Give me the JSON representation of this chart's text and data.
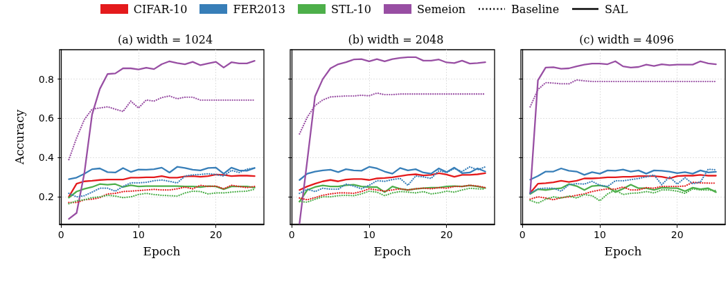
{
  "chart_data": [
    {
      "type": "line",
      "title": "(a) width = 1024",
      "xlabel": "Epoch",
      "ylabel": "Accuracy",
      "x": [
        1,
        2,
        3,
        4,
        5,
        6,
        7,
        8,
        9,
        10,
        11,
        12,
        13,
        14,
        15,
        16,
        17,
        18,
        19,
        20,
        21,
        22,
        23,
        24,
        25
      ],
      "xlim": [
        -0.2,
        26.2
      ],
      "xticks": [
        0,
        10,
        20
      ],
      "ylim": [
        0.06,
        0.95
      ],
      "yticks": [
        0.2,
        0.4,
        0.6,
        0.8
      ],
      "grid": true,
      "legend": "top",
      "annotations": [
        "Baseline",
        "SAL"
      ],
      "series": [
        {
          "name": "CIFAR-10",
          "color": "#e41a1c",
          "line_style": "dotted",
          "values": [
            0.171,
            0.171,
            0.185,
            0.188,
            0.196,
            0.215,
            0.218,
            0.227,
            0.229,
            0.232,
            0.235,
            0.238,
            0.235,
            0.235,
            0.241,
            0.25,
            0.241,
            0.259,
            0.253,
            0.255,
            0.241,
            0.259,
            0.253,
            0.247,
            0.253
          ]
        },
        {
          "color": "#e41a1c",
          "line_style": "solid",
          "values": [
            0.2,
            0.267,
            0.279,
            0.282,
            0.286,
            0.288,
            0.288,
            0.288,
            0.298,
            0.298,
            0.3,
            0.3,
            0.306,
            0.298,
            0.298,
            0.304,
            0.306,
            0.302,
            0.306,
            0.314,
            0.312,
            0.306,
            0.308,
            0.308,
            0.306
          ]
        },
        {
          "name": "FER2013",
          "color": "#377eb8",
          "line_style": "dotted",
          "values": [
            0.218,
            0.2,
            0.206,
            0.224,
            0.244,
            0.244,
            0.229,
            0.253,
            0.271,
            0.271,
            0.274,
            0.282,
            0.286,
            0.279,
            0.271,
            0.306,
            0.312,
            0.314,
            0.318,
            0.314,
            0.306,
            0.335,
            0.324,
            0.341,
            0.347
          ]
        },
        {
          "color": "#377eb8",
          "line_style": "solid",
          "values": [
            0.29,
            0.298,
            0.318,
            0.341,
            0.345,
            0.326,
            0.324,
            0.347,
            0.327,
            0.339,
            0.338,
            0.341,
            0.349,
            0.324,
            0.353,
            0.347,
            0.338,
            0.335,
            0.347,
            0.349,
            0.318,
            0.349,
            0.335,
            0.333,
            0.347
          ]
        },
        {
          "name": "STL-10",
          "color": "#4daf4a",
          "line_style": "dotted",
          "values": [
            0.165,
            0.18,
            0.185,
            0.196,
            0.2,
            0.208,
            0.204,
            0.196,
            0.2,
            0.212,
            0.218,
            0.212,
            0.208,
            0.206,
            0.204,
            0.22,
            0.229,
            0.227,
            0.215,
            0.22,
            0.22,
            0.224,
            0.227,
            0.229,
            0.239
          ]
        },
        {
          "color": "#4daf4a",
          "line_style": "solid",
          "values": [
            0.196,
            0.227,
            0.241,
            0.25,
            0.265,
            0.262,
            0.265,
            0.25,
            0.259,
            0.253,
            0.255,
            0.255,
            0.255,
            0.255,
            0.255,
            0.253,
            0.253,
            0.25,
            0.255,
            0.253,
            0.239,
            0.253,
            0.253,
            0.253,
            0.247
          ]
        },
        {
          "name": "Semeion",
          "color": "#984ea3",
          "line_style": "dotted",
          "values": [
            0.39,
            0.5,
            0.594,
            0.647,
            0.653,
            0.659,
            0.647,
            0.635,
            0.688,
            0.653,
            0.694,
            0.688,
            0.706,
            0.714,
            0.7,
            0.708,
            0.708,
            0.693,
            0.693,
            0.693,
            0.693,
            0.693,
            0.693,
            0.693,
            0.693
          ]
        },
        {
          "color": "#984ea3",
          "line_style": "solid",
          "values": [
            0.088,
            0.118,
            0.32,
            0.62,
            0.75,
            0.826,
            0.829,
            0.855,
            0.855,
            0.849,
            0.858,
            0.851,
            0.876,
            0.891,
            0.882,
            0.876,
            0.888,
            0.871,
            0.88,
            0.888,
            0.859,
            0.886,
            0.88,
            0.88,
            0.893
          ]
        }
      ]
    },
    {
      "type": "line",
      "title": "(b) width = 2048",
      "xlabel": "Epoch",
      "x": [
        1,
        2,
        3,
        4,
        5,
        6,
        7,
        8,
        9,
        10,
        11,
        12,
        13,
        14,
        15,
        16,
        17,
        18,
        19,
        20,
        21,
        22,
        23,
        24,
        25
      ],
      "xlim": [
        -0.2,
        26.2
      ],
      "xticks": [
        0,
        10,
        20
      ],
      "ylim": [
        0.06,
        0.95
      ],
      "yticks": [
        0.2,
        0.4,
        0.6,
        0.8
      ],
      "grid": true,
      "tick_labels": "x",
      "series": [
        {
          "color": "#e41a1c",
          "line_style": "dotted",
          "values": [
            0.194,
            0.185,
            0.196,
            0.208,
            0.215,
            0.22,
            0.22,
            0.218,
            0.227,
            0.241,
            0.235,
            0.229,
            0.235,
            0.241,
            0.235,
            0.241,
            0.244,
            0.241,
            0.247,
            0.244,
            0.253,
            0.253,
            0.259,
            0.255,
            0.247
          ]
        },
        {
          "color": "#e41a1c",
          "line_style": "solid",
          "values": [
            0.235,
            0.253,
            0.267,
            0.279,
            0.286,
            0.279,
            0.288,
            0.291,
            0.291,
            0.286,
            0.294,
            0.296,
            0.3,
            0.306,
            0.312,
            0.315,
            0.309,
            0.312,
            0.321,
            0.314,
            0.302,
            0.312,
            0.312,
            0.315,
            0.321
          ]
        },
        {
          "color": "#377eb8",
          "line_style": "dotted",
          "values": [
            0.218,
            0.239,
            0.227,
            0.244,
            0.239,
            0.239,
            0.265,
            0.255,
            0.241,
            0.259,
            0.282,
            0.279,
            0.288,
            0.294,
            0.259,
            0.306,
            0.302,
            0.294,
            0.333,
            0.324,
            0.345,
            0.329,
            0.353,
            0.338,
            0.353
          ]
        },
        {
          "color": "#377eb8",
          "line_style": "solid",
          "values": [
            0.286,
            0.318,
            0.329,
            0.335,
            0.338,
            0.326,
            0.341,
            0.335,
            0.333,
            0.353,
            0.345,
            0.329,
            0.318,
            0.347,
            0.335,
            0.341,
            0.324,
            0.318,
            0.345,
            0.326,
            0.349,
            0.321,
            0.324,
            0.345,
            0.329
          ]
        },
        {
          "color": "#4daf4a",
          "line_style": "dotted",
          "values": [
            0.176,
            0.173,
            0.188,
            0.2,
            0.2,
            0.206,
            0.208,
            0.206,
            0.215,
            0.229,
            0.224,
            0.206,
            0.22,
            0.227,
            0.224,
            0.22,
            0.227,
            0.215,
            0.22,
            0.229,
            0.224,
            0.235,
            0.244,
            0.241,
            0.239
          ]
        },
        {
          "color": "#4daf4a",
          "line_style": "solid",
          "values": [
            0.176,
            0.235,
            0.25,
            0.258,
            0.253,
            0.253,
            0.259,
            0.262,
            0.253,
            0.25,
            0.25,
            0.224,
            0.253,
            0.241,
            0.235,
            0.241,
            0.244,
            0.247,
            0.247,
            0.253,
            0.255,
            0.253,
            0.258,
            0.253,
            0.245
          ]
        },
        {
          "color": "#984ea3",
          "line_style": "dotted",
          "values": [
            0.521,
            0.606,
            0.665,
            0.694,
            0.709,
            0.712,
            0.714,
            0.714,
            0.718,
            0.715,
            0.729,
            0.721,
            0.721,
            0.724,
            0.724,
            0.724,
            0.724,
            0.724,
            0.724,
            0.724,
            0.724,
            0.724,
            0.724,
            0.724,
            0.724
          ]
        },
        {
          "color": "#984ea3",
          "line_style": "solid",
          "values": [
            0.065,
            0.385,
            0.712,
            0.8,
            0.855,
            0.876,
            0.886,
            0.9,
            0.902,
            0.891,
            0.902,
            0.891,
            0.902,
            0.908,
            0.912,
            0.912,
            0.894,
            0.894,
            0.9,
            0.885,
            0.882,
            0.894,
            0.879,
            0.882,
            0.886
          ]
        }
      ]
    },
    {
      "type": "line",
      "title": "(c) width = 4096",
      "xlabel": "Epoch",
      "x": [
        1,
        2,
        3,
        4,
        5,
        6,
        7,
        8,
        9,
        10,
        11,
        12,
        13,
        14,
        15,
        16,
        17,
        18,
        19,
        20,
        21,
        22,
        23,
        24,
        25
      ],
      "xlim": [
        -0.2,
        26.2
      ],
      "xticks": [
        0,
        10,
        20
      ],
      "ylim": [
        0.06,
        0.95
      ],
      "yticks": [
        0.2,
        0.4,
        0.6,
        0.8
      ],
      "grid": true,
      "tick_labels": "x",
      "series": [
        {
          "color": "#e41a1c",
          "line_style": "dotted",
          "values": [
            0.188,
            0.2,
            0.194,
            0.185,
            0.196,
            0.2,
            0.208,
            0.215,
            0.227,
            0.235,
            0.241,
            0.239,
            0.25,
            0.235,
            0.235,
            0.247,
            0.244,
            0.253,
            0.253,
            0.253,
            0.255,
            0.274,
            0.271,
            0.27,
            0.27
          ]
        },
        {
          "color": "#e41a1c",
          "line_style": "solid",
          "values": [
            0.22,
            0.267,
            0.27,
            0.274,
            0.282,
            0.276,
            0.282,
            0.294,
            0.294,
            0.296,
            0.3,
            0.3,
            0.302,
            0.302,
            0.306,
            0.306,
            0.306,
            0.302,
            0.294,
            0.306,
            0.308,
            0.308,
            0.312,
            0.308,
            0.308
          ]
        },
        {
          "color": "#377eb8",
          "line_style": "dotted",
          "values": [
            0.218,
            0.241,
            0.244,
            0.244,
            0.229,
            0.262,
            0.267,
            0.265,
            0.279,
            0.259,
            0.253,
            0.282,
            0.282,
            0.288,
            0.294,
            0.302,
            0.312,
            0.262,
            0.302,
            0.265,
            0.298,
            0.267,
            0.276,
            0.341,
            0.338
          ]
        },
        {
          "color": "#377eb8",
          "line_style": "solid",
          "values": [
            0.288,
            0.306,
            0.329,
            0.329,
            0.345,
            0.333,
            0.329,
            0.312,
            0.326,
            0.318,
            0.335,
            0.333,
            0.339,
            0.329,
            0.335,
            0.318,
            0.335,
            0.333,
            0.329,
            0.321,
            0.326,
            0.318,
            0.335,
            0.324,
            0.328
          ]
        },
        {
          "color": "#4daf4a",
          "line_style": "dotted",
          "values": [
            0.182,
            0.168,
            0.188,
            0.2,
            0.194,
            0.204,
            0.194,
            0.212,
            0.206,
            0.18,
            0.215,
            0.235,
            0.212,
            0.218,
            0.22,
            0.227,
            0.22,
            0.235,
            0.235,
            0.229,
            0.218,
            0.241,
            0.235,
            0.235,
            0.232
          ]
        },
        {
          "color": "#4daf4a",
          "line_style": "solid",
          "values": [
            0.215,
            0.239,
            0.235,
            0.241,
            0.244,
            0.265,
            0.255,
            0.235,
            0.255,
            0.258,
            0.25,
            0.224,
            0.241,
            0.262,
            0.244,
            0.244,
            0.235,
            0.247,
            0.245,
            0.244,
            0.229,
            0.247,
            0.239,
            0.244,
            0.224
          ]
        },
        {
          "color": "#984ea3",
          "line_style": "dotted",
          "values": [
            0.659,
            0.747,
            0.782,
            0.78,
            0.776,
            0.776,
            0.796,
            0.791,
            0.788,
            0.788,
            0.788,
            0.788,
            0.788,
            0.788,
            0.788,
            0.788,
            0.788,
            0.788,
            0.788,
            0.788,
            0.788,
            0.788,
            0.788,
            0.788,
            0.788
          ]
        },
        {
          "color": "#984ea3",
          "line_style": "solid",
          "values": [
            0.218,
            0.794,
            0.859,
            0.861,
            0.853,
            0.855,
            0.865,
            0.874,
            0.879,
            0.879,
            0.876,
            0.891,
            0.865,
            0.859,
            0.862,
            0.874,
            0.867,
            0.876,
            0.871,
            0.874,
            0.874,
            0.874,
            0.891,
            0.88,
            0.876
          ]
        }
      ]
    }
  ]
}
